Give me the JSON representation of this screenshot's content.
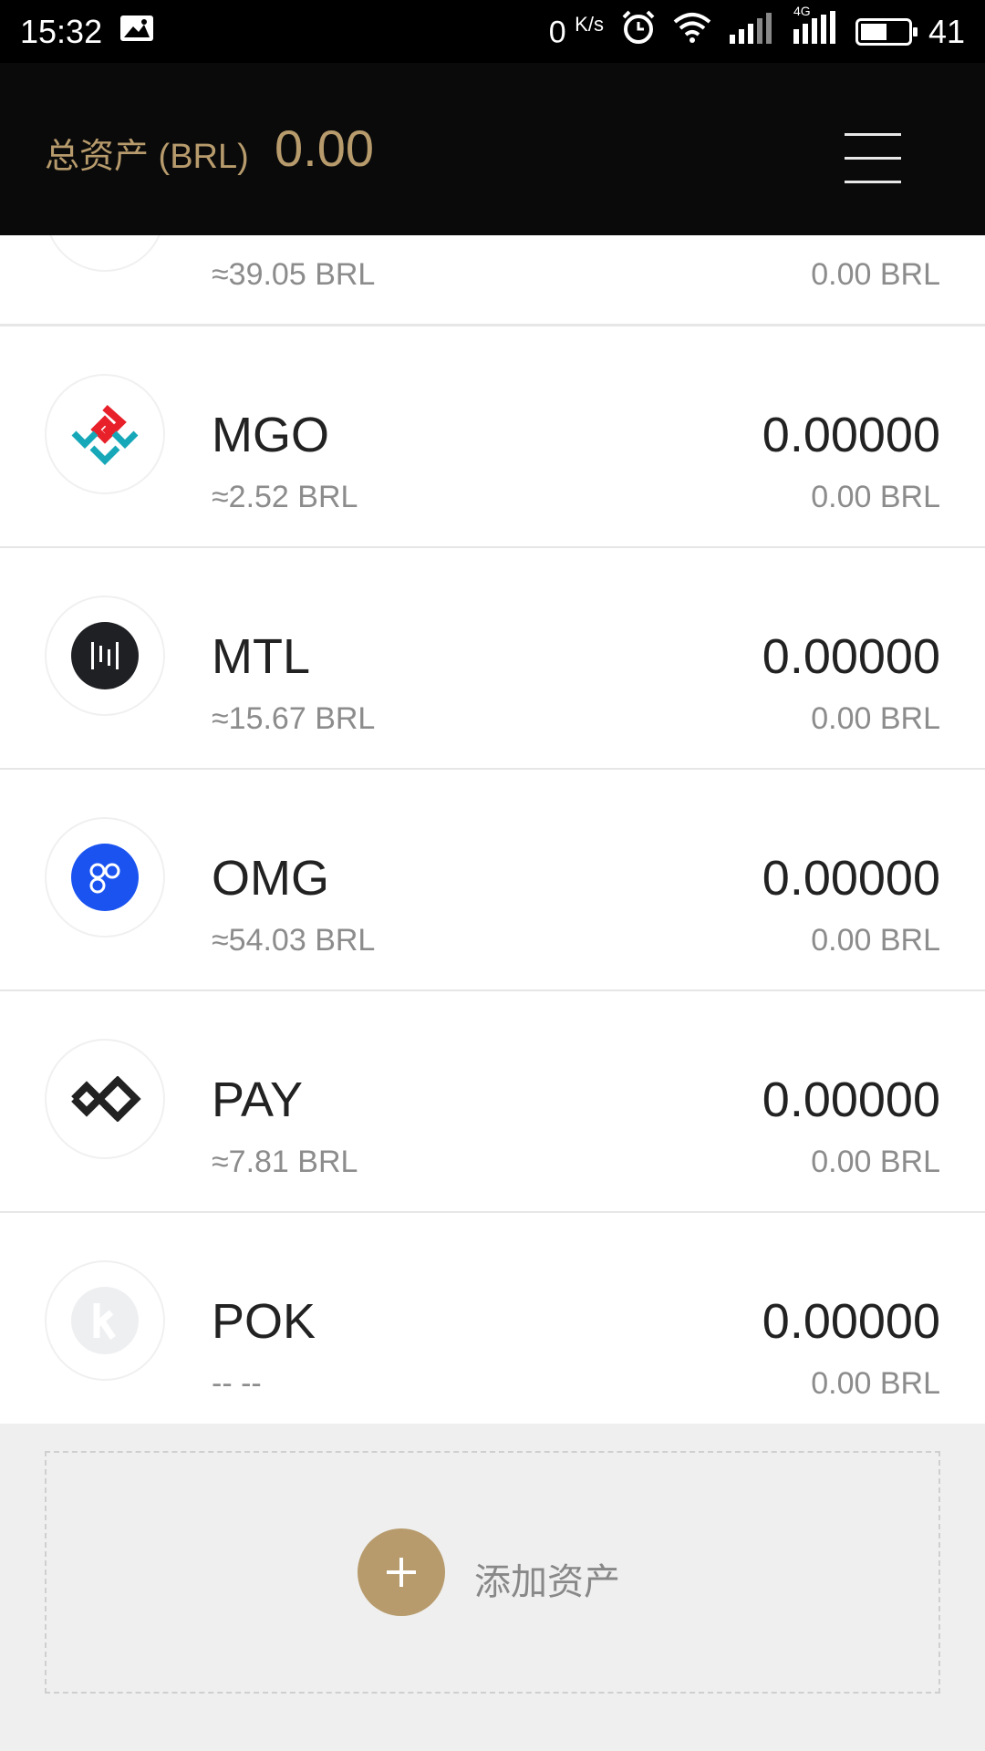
{
  "status_bar": {
    "time": "15:32",
    "speed": "0",
    "speed_unit": "K/s",
    "network": "4G",
    "battery": "41"
  },
  "header": {
    "total_label": "总资产 (BRL)",
    "total_value": "0.00"
  },
  "assets": [
    {
      "symbol": "",
      "approx": "≈39.05 BRL",
      "amount": "",
      "fiat": "0.00 BRL",
      "icon": "partial-coin-icon"
    },
    {
      "symbol": "MGO",
      "approx": "≈2.52 BRL",
      "amount": "0.00000",
      "fiat": "0.00 BRL",
      "icon": "mgo-logo-icon"
    },
    {
      "symbol": "MTL",
      "approx": "≈15.67 BRL",
      "amount": "0.00000",
      "fiat": "0.00 BRL",
      "icon": "mtl-logo-icon"
    },
    {
      "symbol": "OMG",
      "approx": "≈54.03 BRL",
      "amount": "0.00000",
      "fiat": "0.00 BRL",
      "icon": "omg-logo-icon"
    },
    {
      "symbol": "PAY",
      "approx": "≈7.81 BRL",
      "amount": "0.00000",
      "fiat": "0.00 BRL",
      "icon": "pay-logo-icon"
    },
    {
      "symbol": "POK",
      "approx": "-- --",
      "amount": "0.00000",
      "fiat": "0.00 BRL",
      "icon": "pok-logo-icon"
    }
  ],
  "add_asset": {
    "label": "添加资产"
  },
  "colors": {
    "accent": "#b79b6c",
    "header_bg": "#0a0a0a",
    "omg_blue": "#1a53f0",
    "mgo_red": "#e8202a",
    "mgo_teal": "#16a8b8"
  }
}
